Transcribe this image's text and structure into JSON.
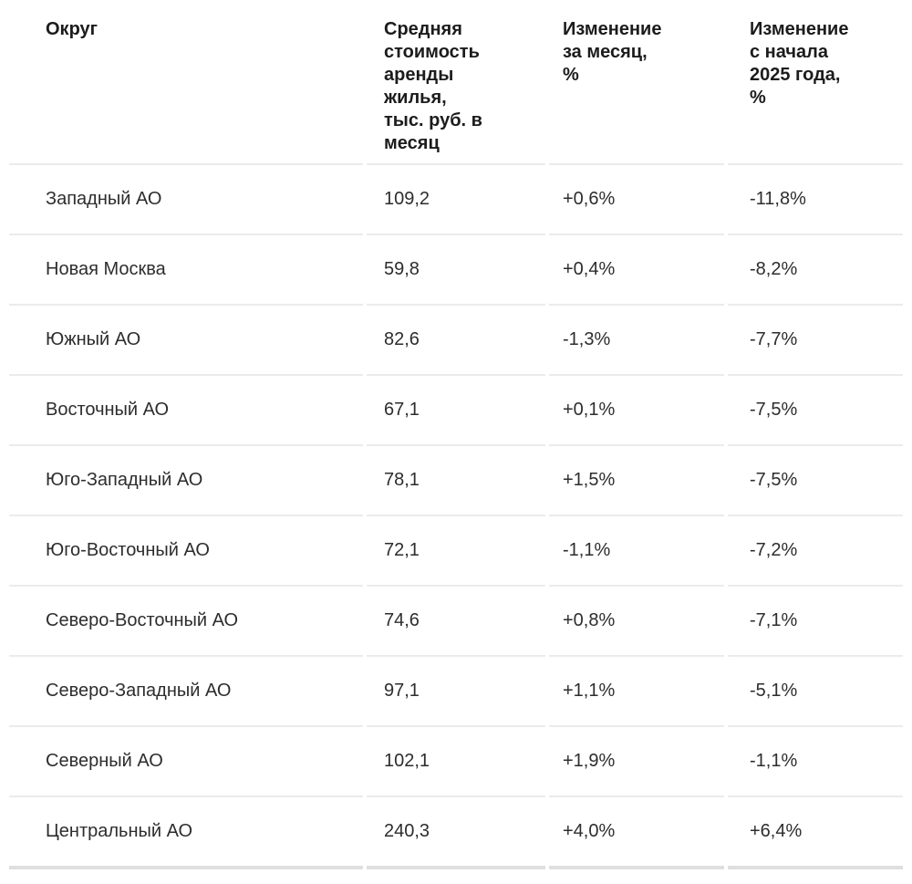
{
  "table": {
    "headers": {
      "district": "Округ",
      "price": "Средняя\nстоимость\nаренды\nжилья,\nтыс. руб. в\nмесяц",
      "month_change": "Изменение\nза месяц,\n%",
      "ytd_change": "Изменение\nс начала\n2025 года,\n%"
    },
    "rows": [
      {
        "district": "Западный АО",
        "price": "109,2",
        "month_change": "+0,6%",
        "ytd_change": "-11,8%"
      },
      {
        "district": "Новая Москва",
        "price": "59,8",
        "month_change": "+0,4%",
        "ytd_change": "-8,2%"
      },
      {
        "district": "Южный АО",
        "price": "82,6",
        "month_change": "-1,3%",
        "ytd_change": "-7,7%"
      },
      {
        "district": "Восточный АО",
        "price": "67,1",
        "month_change": "+0,1%",
        "ytd_change": "-7,5%"
      },
      {
        "district": "Юго-Западный АО",
        "price": "78,1",
        "month_change": "+1,5%",
        "ytd_change": "-7,5%"
      },
      {
        "district": "Юго-Восточный АО",
        "price": "72,1",
        "month_change": "-1,1%",
        "ytd_change": "-7,2%"
      },
      {
        "district": "Северо-Восточный АО",
        "price": "74,6",
        "month_change": "+0,8%",
        "ytd_change": "-7,1%"
      },
      {
        "district": "Северо-Западный АО",
        "price": "97,1",
        "month_change": "+1,1%",
        "ytd_change": "-5,1%"
      },
      {
        "district": "Северный АО",
        "price": "102,1",
        "month_change": "+1,9%",
        "ytd_change": "-1,1%"
      },
      {
        "district": "Центральный АО",
        "price": "240,3",
        "month_change": "+4,0%",
        "ytd_change": "+6,4%"
      }
    ]
  },
  "colors": {
    "background": "#ffffff",
    "header_text": "#1c1c1c",
    "body_text": "#2d2d2d",
    "row_divider": "#ebebeb",
    "bottom_rule": "#dfdfdf"
  },
  "chart_data": {
    "type": "table",
    "title": "",
    "columns": [
      "Округ",
      "Средняя стоимость аренды жилья, тыс. руб. в месяц",
      "Изменение за месяц, %",
      "Изменение с начала 2025 года, %"
    ],
    "rows": [
      [
        "Западный АО",
        109.2,
        0.6,
        -11.8
      ],
      [
        "Новая Москва",
        59.8,
        0.4,
        -8.2
      ],
      [
        "Южный АО",
        82.6,
        -1.3,
        -7.7
      ],
      [
        "Восточный АО",
        67.1,
        0.1,
        -7.5
      ],
      [
        "Юго-Западный АО",
        78.1,
        1.5,
        -7.5
      ],
      [
        "Юго-Восточный АО",
        72.1,
        -1.1,
        -7.2
      ],
      [
        "Северо-Восточный АО",
        74.6,
        0.8,
        -7.1
      ],
      [
        "Северо-Западный АО",
        97.1,
        1.1,
        -5.1
      ],
      [
        "Северный АО",
        102.1,
        1.9,
        -1.1
      ],
      [
        "Центральный АО",
        240.3,
        4.0,
        6.4
      ]
    ]
  }
}
